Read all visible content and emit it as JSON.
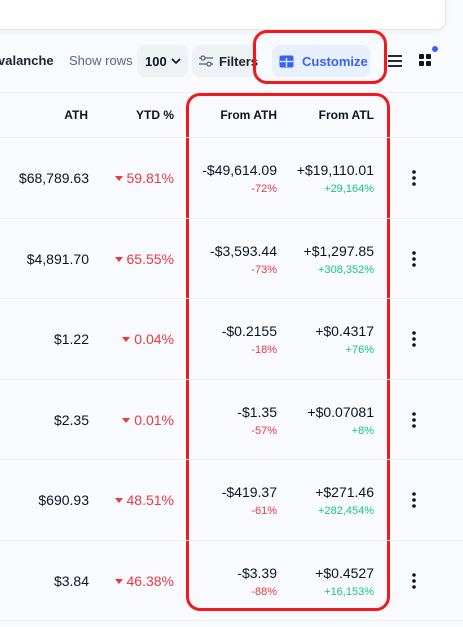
{
  "toolbar": {
    "network": "valanche",
    "show_rows_label": "Show rows",
    "rows_value": "100",
    "filters": "Filters",
    "customize": "Customize"
  },
  "table": {
    "columns": [
      "ATH",
      "YTD %",
      "From ATH",
      "From ATL"
    ],
    "rows": [
      {
        "ath": "$68,789.63",
        "ytd": "59.81%",
        "from_ath": "-$49,614.09",
        "from_ath_pct": "-72%",
        "from_atl": "+$19,110.01",
        "from_atl_pct": "+29,164%"
      },
      {
        "ath": "$4,891.70",
        "ytd": "65.55%",
        "from_ath": "-$3,593.44",
        "from_ath_pct": "-73%",
        "from_atl": "+$1,297.85",
        "from_atl_pct": "+308,352%"
      },
      {
        "ath": "$1.22",
        "ytd": "0.04%",
        "from_ath": "-$0.2155",
        "from_ath_pct": "-18%",
        "from_atl": "+$0.4317",
        "from_atl_pct": "+76%"
      },
      {
        "ath": "$2.35",
        "ytd": "0.01%",
        "from_ath": "-$1.35",
        "from_ath_pct": "-57%",
        "from_atl": "+$0.07081",
        "from_atl_pct": "+8%"
      },
      {
        "ath": "$690.93",
        "ytd": "48.51%",
        "from_ath": "-$419.37",
        "from_ath_pct": "-61%",
        "from_atl": "+$271.46",
        "from_atl_pct": "+282,454%"
      },
      {
        "ath": "$3.84",
        "ytd": "46.38%",
        "from_ath": "-$3.39",
        "from_ath_pct": "-88%",
        "from_atl": "+$0.4527",
        "from_atl_pct": "+16,153%"
      }
    ]
  }
}
